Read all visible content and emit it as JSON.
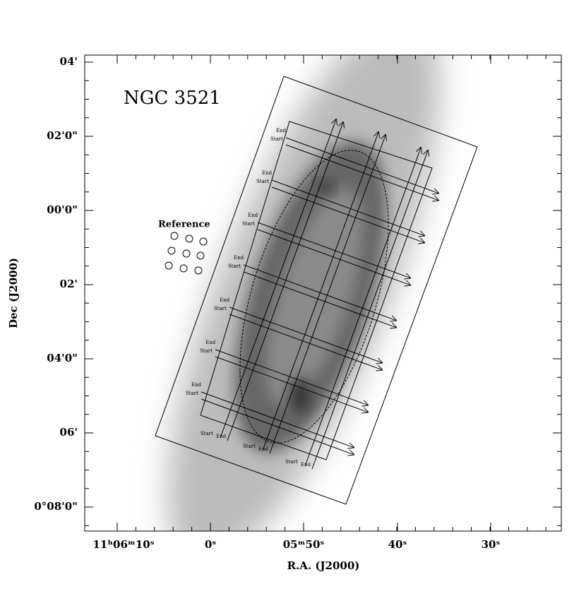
{
  "figure": {
    "title": "NGC 3521",
    "reference_label": "Reference",
    "scan_labels": {
      "end": "End",
      "start": "Start"
    },
    "x_axis": {
      "label": "R.A. (J2000)",
      "ticks": [
        "11ʰ06ᵐ10ˢ",
        "0ˢ",
        "05ᵐ50ˢ",
        "40ˢ",
        "30ˢ"
      ]
    },
    "y_axis": {
      "label": "Dec (J2000)",
      "ticks": [
        "04'",
        "02'0\"",
        "00'0\"",
        "02'",
        "04'0\"",
        "06'",
        "0°08'0\""
      ]
    }
  }
}
